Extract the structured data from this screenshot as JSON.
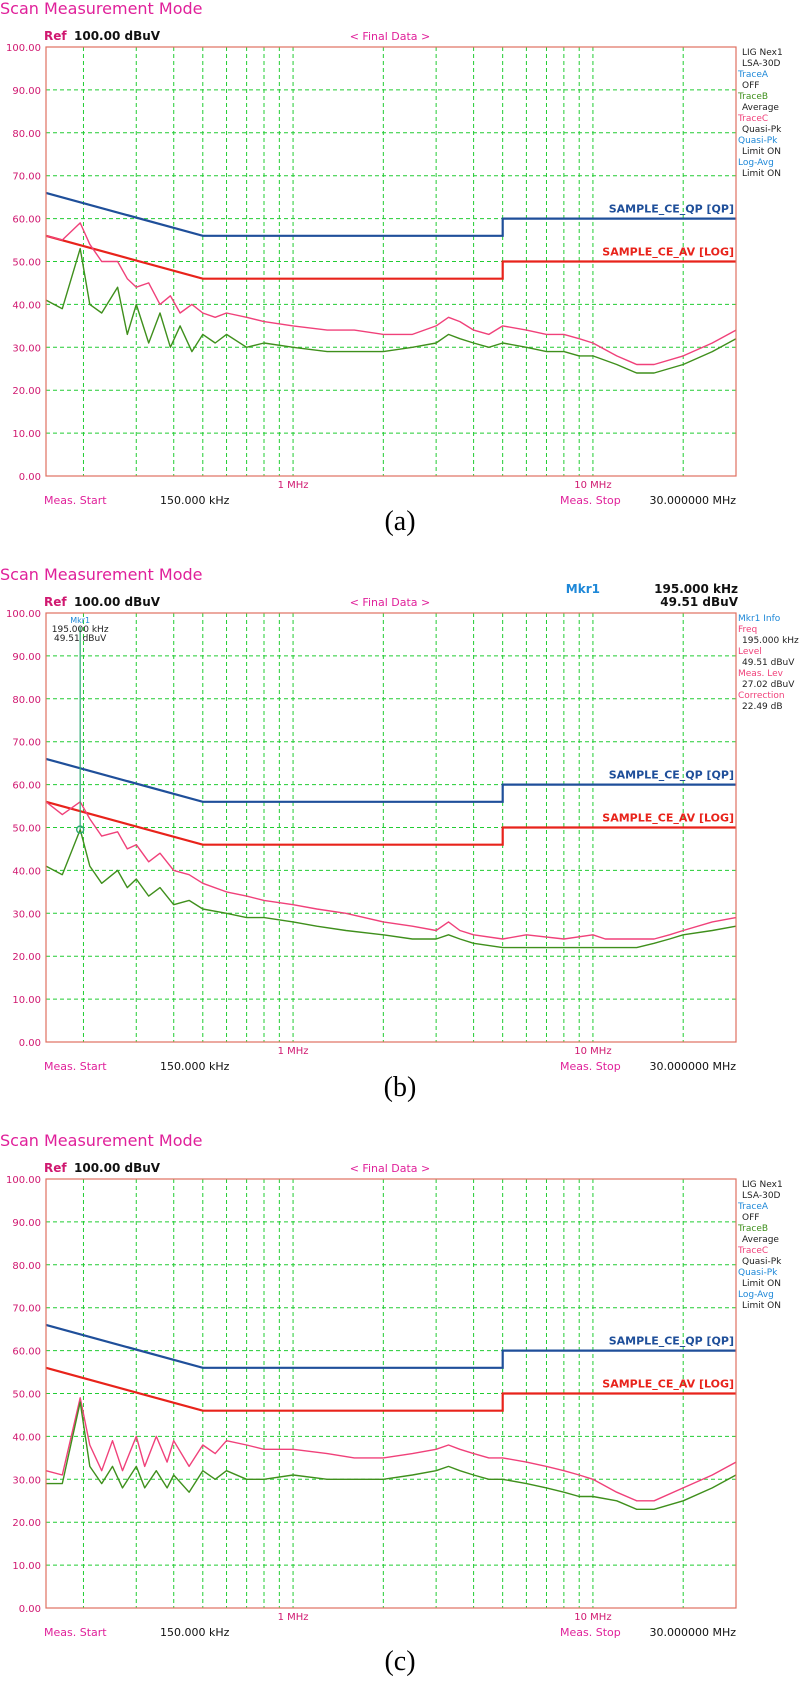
{
  "colors": {
    "title": "#e0209a",
    "grid": "#22cc33",
    "frame": "#e07060",
    "ref": "#d01870",
    "qp_limit": "#1f4f9a",
    "av_limit": "#e8231b",
    "traceC": "#f0417a",
    "traceB": "#3f8f1c",
    "info_label": "#1e88d8",
    "info_value": "#222222",
    "marker": "#2aa873"
  },
  "chart_data": [
    {
      "type": "line",
      "panel_label": "(a)",
      "title": "Scan Measurement Mode",
      "ref_label": "Ref",
      "ref_value": "100.00 dBuV",
      "header": "< Final Data >",
      "x_scale": "log",
      "xlim_mhz": [
        0.15,
        30
      ],
      "ylim": [
        0,
        100
      ],
      "y_ticks": [
        "0.00",
        "10.00",
        "20.00",
        "30.00",
        "40.00",
        "50.00",
        "60.00",
        "70.00",
        "80.00",
        "90.00",
        "100.00"
      ],
      "x_tick_labels": [
        {
          "mhz": 1,
          "label": "1 MHz"
        },
        {
          "mhz": 10,
          "label": "10 MHz"
        }
      ],
      "meas_start_label": "Meas. Start",
      "meas_start_value": "150.000 kHz",
      "meas_stop_label": "Meas. Stop",
      "meas_stop_value": "30.000000 MHz",
      "side_info": [
        {
          "text": "LIG Nex1",
          "role": "value"
        },
        {
          "text": "LSA-30D",
          "role": "value"
        },
        {
          "text": "TraceA",
          "role": "label"
        },
        {
          "text": "OFF",
          "role": "value"
        },
        {
          "text": "TraceB",
          "role": "labelB"
        },
        {
          "text": "Average",
          "role": "value"
        },
        {
          "text": "TraceC",
          "role": "labelC"
        },
        {
          "text": "Quasi-Pk",
          "role": "value"
        },
        {
          "text": "Quasi-Pk",
          "role": "label"
        },
        {
          "text": "Limit ON",
          "role": "value"
        },
        {
          "text": "Log-Avg",
          "role": "label"
        },
        {
          "text": "Limit ON",
          "role": "value"
        }
      ],
      "limits": [
        {
          "name": "SAMPLE_CE_QP [QP]",
          "x": [
            0.15,
            0.5,
            0.5,
            5,
            5,
            30
          ],
          "y": [
            66,
            56,
            56,
            56,
            60,
            60
          ]
        },
        {
          "name": "SAMPLE_CE_AV [LOG]",
          "x": [
            0.15,
            0.5,
            0.5,
            5,
            5,
            30
          ],
          "y": [
            56,
            46,
            46,
            46,
            50,
            50
          ]
        }
      ],
      "series": [
        {
          "trace": "C",
          "x": [
            0.15,
            0.17,
            0.195,
            0.21,
            0.23,
            0.26,
            0.28,
            0.3,
            0.33,
            0.36,
            0.39,
            0.42,
            0.46,
            0.5,
            0.55,
            0.6,
            0.7,
            0.8,
            1,
            1.3,
            1.6,
            2,
            2.5,
            3,
            3.3,
            3.6,
            4,
            4.5,
            5,
            6,
            7,
            8,
            9,
            10,
            12,
            14,
            16,
            20,
            25,
            30
          ],
          "y": [
            56,
            55,
            59,
            54,
            50,
            50,
            46,
            44,
            45,
            40,
            42,
            38,
            40,
            38,
            37,
            38,
            37,
            36,
            35,
            34,
            34,
            33,
            33,
            35,
            37,
            36,
            34,
            33,
            35,
            34,
            33,
            33,
            32,
            31,
            28,
            26,
            26,
            28,
            31,
            34
          ]
        },
        {
          "trace": "B",
          "x": [
            0.15,
            0.17,
            0.195,
            0.21,
            0.23,
            0.26,
            0.28,
            0.3,
            0.33,
            0.36,
            0.39,
            0.42,
            0.46,
            0.5,
            0.55,
            0.6,
            0.7,
            0.8,
            1,
            1.3,
            1.6,
            2,
            2.5,
            3,
            3.3,
            3.6,
            4,
            4.5,
            5,
            6,
            7,
            8,
            9,
            10,
            12,
            14,
            16,
            20,
            25,
            30
          ],
          "y": [
            41,
            39,
            53,
            40,
            38,
            44,
            33,
            40,
            31,
            38,
            30,
            35,
            29,
            33,
            31,
            33,
            30,
            31,
            30,
            29,
            29,
            29,
            30,
            31,
            33,
            32,
            31,
            30,
            31,
            30,
            29,
            29,
            28,
            28,
            26,
            24,
            24,
            26,
            29,
            32
          ]
        }
      ]
    },
    {
      "type": "line",
      "panel_label": "(b)",
      "title": "Scan Measurement Mode",
      "ref_label": "Ref",
      "ref_value": "100.00 dBuV",
      "header": "< Final Data >",
      "x_scale": "log",
      "xlim_mhz": [
        0.15,
        30
      ],
      "ylim": [
        0,
        100
      ],
      "y_ticks": [
        "0.00",
        "10.00",
        "20.00",
        "30.00",
        "40.00",
        "50.00",
        "60.00",
        "70.00",
        "80.00",
        "90.00",
        "100.00"
      ],
      "x_tick_labels": [
        {
          "mhz": 1,
          "label": "1 MHz"
        },
        {
          "mhz": 10,
          "label": "10 MHz"
        }
      ],
      "meas_start_label": "Meas. Start",
      "meas_start_value": "150.000 kHz",
      "meas_stop_label": "Meas. Stop",
      "meas_stop_value": "30.000000 MHz",
      "marker_header": {
        "label": "Mkr1",
        "freq": "195.000 kHz",
        "level": "49.51 dBuV"
      },
      "marker": {
        "x_mhz": 0.195,
        "y": 49.51,
        "label": "Mkr1",
        "freq": "195.000 kHz",
        "level": "49.51 dBuV"
      },
      "side_info": [
        {
          "text": "Mkr1 Info",
          "role": "label"
        },
        {
          "text": "Freq",
          "role": "labelC"
        },
        {
          "text": "195.000 kHz",
          "role": "value"
        },
        {
          "text": "Level",
          "role": "labelC"
        },
        {
          "text": "49.51 dBuV",
          "role": "value"
        },
        {
          "text": "Meas. Lev",
          "role": "labelC"
        },
        {
          "text": "27.02 dBuV",
          "role": "value"
        },
        {
          "text": "Correction",
          "role": "labelC"
        },
        {
          "text": "22.49 dB",
          "role": "value"
        }
      ],
      "limits": [
        {
          "name": "SAMPLE_CE_QP [QP]",
          "x": [
            0.15,
            0.5,
            0.5,
            5,
            5,
            30
          ],
          "y": [
            66,
            56,
            56,
            56,
            60,
            60
          ]
        },
        {
          "name": "SAMPLE_CE_AV [LOG]",
          "x": [
            0.15,
            0.5,
            0.5,
            5,
            5,
            30
          ],
          "y": [
            56,
            46,
            46,
            46,
            50,
            50
          ]
        }
      ],
      "series": [
        {
          "trace": "C",
          "x": [
            0.15,
            0.17,
            0.195,
            0.21,
            0.23,
            0.26,
            0.28,
            0.3,
            0.33,
            0.36,
            0.4,
            0.45,
            0.5,
            0.6,
            0.7,
            0.8,
            1,
            1.2,
            1.5,
            2,
            2.5,
            3,
            3.3,
            3.6,
            4,
            5,
            6,
            8,
            10,
            11,
            12,
            14,
            16,
            18,
            20,
            25,
            30
          ],
          "y": [
            56,
            53,
            56,
            52,
            48,
            49,
            45,
            46,
            42,
            44,
            40,
            39,
            37,
            35,
            34,
            33,
            32,
            31,
            30,
            28,
            27,
            26,
            28,
            26,
            25,
            24,
            25,
            24,
            25,
            24,
            24,
            24,
            24,
            25,
            26,
            28,
            29
          ]
        },
        {
          "trace": "B",
          "x": [
            0.15,
            0.17,
            0.195,
            0.21,
            0.23,
            0.26,
            0.28,
            0.3,
            0.33,
            0.36,
            0.4,
            0.45,
            0.5,
            0.6,
            0.7,
            0.8,
            1,
            1.2,
            1.5,
            2,
            2.5,
            3,
            3.3,
            3.6,
            4,
            5,
            6,
            8,
            10,
            11,
            12,
            14,
            16,
            18,
            20,
            25,
            30
          ],
          "y": [
            41,
            39,
            49.5,
            41,
            37,
            40,
            36,
            38,
            34,
            36,
            32,
            33,
            31,
            30,
            29,
            29,
            28,
            27,
            26,
            25,
            24,
            24,
            25,
            24,
            23,
            22,
            22,
            22,
            22,
            22,
            22,
            22,
            23,
            24,
            25,
            26,
            27
          ]
        }
      ]
    },
    {
      "type": "line",
      "panel_label": "(c)",
      "title": "Scan Measurement Mode",
      "ref_label": "Ref",
      "ref_value": "100.00 dBuV",
      "header": "< Final Data >",
      "x_scale": "log",
      "xlim_mhz": [
        0.15,
        30
      ],
      "ylim": [
        0,
        100
      ],
      "y_ticks": [
        "0.00",
        "10.00",
        "20.00",
        "30.00",
        "40.00",
        "50.00",
        "60.00",
        "70.00",
        "80.00",
        "90.00",
        "100.00"
      ],
      "x_tick_labels": [
        {
          "mhz": 1,
          "label": "1 MHz"
        },
        {
          "mhz": 10,
          "label": "10 MHz"
        }
      ],
      "meas_start_label": "Meas. Start",
      "meas_start_value": "150.000 kHz",
      "meas_stop_label": "Meas. Stop",
      "meas_stop_value": "30.000000 MHz",
      "side_info": [
        {
          "text": "LIG Nex1",
          "role": "value"
        },
        {
          "text": "LSA-30D",
          "role": "value"
        },
        {
          "text": "TraceA",
          "role": "label"
        },
        {
          "text": "OFF",
          "role": "value"
        },
        {
          "text": "TraceB",
          "role": "labelB"
        },
        {
          "text": "Average",
          "role": "value"
        },
        {
          "text": "TraceC",
          "role": "labelC"
        },
        {
          "text": "Quasi-Pk",
          "role": "value"
        },
        {
          "text": "Quasi-Pk",
          "role": "label"
        },
        {
          "text": "Limit ON",
          "role": "value"
        },
        {
          "text": "Log-Avg",
          "role": "label"
        },
        {
          "text": "Limit ON",
          "role": "value"
        }
      ],
      "limits": [
        {
          "name": "SAMPLE_CE_QP [QP]",
          "x": [
            0.15,
            0.5,
            0.5,
            5,
            5,
            30
          ],
          "y": [
            66,
            56,
            56,
            56,
            60,
            60
          ]
        },
        {
          "name": "SAMPLE_CE_AV [LOG]",
          "x": [
            0.15,
            0.5,
            0.5,
            5,
            5,
            30
          ],
          "y": [
            56,
            46,
            46,
            46,
            50,
            50
          ]
        }
      ],
      "series": [
        {
          "trace": "C",
          "x": [
            0.15,
            0.17,
            0.195,
            0.21,
            0.23,
            0.25,
            0.27,
            0.3,
            0.32,
            0.35,
            0.38,
            0.4,
            0.45,
            0.5,
            0.55,
            0.6,
            0.7,
            0.8,
            1,
            1.3,
            1.6,
            2,
            2.5,
            3,
            3.3,
            3.6,
            4,
            4.5,
            5,
            6,
            7,
            8,
            9,
            10,
            12,
            14,
            16,
            20,
            25,
            30
          ],
          "y": [
            32,
            31,
            49,
            38,
            32,
            39,
            32,
            40,
            33,
            40,
            34,
            39,
            33,
            38,
            36,
            39,
            38,
            37,
            37,
            36,
            35,
            35,
            36,
            37,
            38,
            37,
            36,
            35,
            35,
            34,
            33,
            32,
            31,
            30,
            27,
            25,
            25,
            28,
            31,
            34
          ]
        },
        {
          "trace": "B",
          "x": [
            0.15,
            0.17,
            0.195,
            0.21,
            0.23,
            0.25,
            0.27,
            0.3,
            0.32,
            0.35,
            0.38,
            0.4,
            0.45,
            0.5,
            0.55,
            0.6,
            0.7,
            0.8,
            1,
            1.3,
            1.6,
            2,
            2.5,
            3,
            3.3,
            3.6,
            4,
            4.5,
            5,
            6,
            7,
            8,
            9,
            10,
            12,
            14,
            16,
            20,
            25,
            30
          ],
          "y": [
            29,
            29,
            48,
            33,
            29,
            33,
            28,
            33,
            28,
            32,
            28,
            31,
            27,
            32,
            30,
            32,
            30,
            30,
            31,
            30,
            30,
            30,
            31,
            32,
            33,
            32,
            31,
            30,
            30,
            29,
            28,
            27,
            26,
            26,
            25,
            23,
            23,
            25,
            28,
            31
          ]
        }
      ]
    }
  ]
}
